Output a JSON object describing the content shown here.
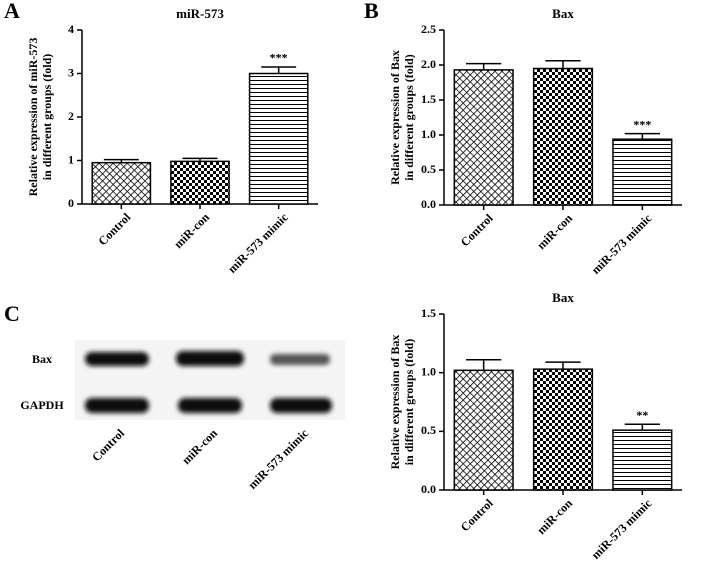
{
  "chart_data": [
    {
      "type": "bar",
      "panel": "A",
      "title": "miR-573",
      "ylabel": [
        "Relative expression of miR-573",
        "in different groups (fold)"
      ],
      "categories": [
        "Control",
        "miR-con",
        "miR-573 mimic"
      ],
      "values": [
        0.95,
        0.98,
        3.0
      ],
      "errors": [
        0.07,
        0.07,
        0.15
      ],
      "significance": [
        null,
        null,
        "***"
      ],
      "ylim": [
        0,
        4
      ],
      "yticks": [
        0,
        1,
        2,
        3,
        4
      ]
    },
    {
      "type": "bar",
      "panel": "B",
      "title": "Bax",
      "ylabel": [
        "Relative expression of Bax",
        "in different groups (fold)"
      ],
      "categories": [
        "Control",
        "miR-con",
        "miR-573 mimic"
      ],
      "values": [
        1.93,
        1.95,
        0.94
      ],
      "errors": [
        0.09,
        0.11,
        0.08
      ],
      "significance": [
        null,
        null,
        "***"
      ],
      "ylim": [
        0,
        2.5
      ],
      "yticks": [
        {
          "value": 0,
          "label": "0.0"
        },
        0.5,
        {
          "value": 1,
          "label": "1.0"
        },
        1.5,
        {
          "value": 2,
          "label": "2.0"
        },
        2.5
      ]
    },
    {
      "type": "bar",
      "title": "Bax",
      "ylabel": [
        "Relative expression of Bax",
        "in different groups (fold)"
      ],
      "categories": [
        "Control",
        "miR-con",
        "miR-573 mimic"
      ],
      "values": [
        1.02,
        1.03,
        0.51
      ],
      "errors": [
        0.09,
        0.06,
        0.05
      ],
      "significance": [
        null,
        null,
        "**"
      ],
      "ylim": [
        0,
        1.5
      ],
      "yticks": [
        {
          "value": 0,
          "label": "0.0"
        },
        0.5,
        {
          "value": 1,
          "label": "1.0"
        },
        1.5
      ]
    }
  ],
  "blot": {
    "panel": "C",
    "rows": [
      "Bax",
      "GAPDH"
    ],
    "lanes": [
      "Control",
      "miR-con",
      "miR-573 mimic"
    ]
  }
}
